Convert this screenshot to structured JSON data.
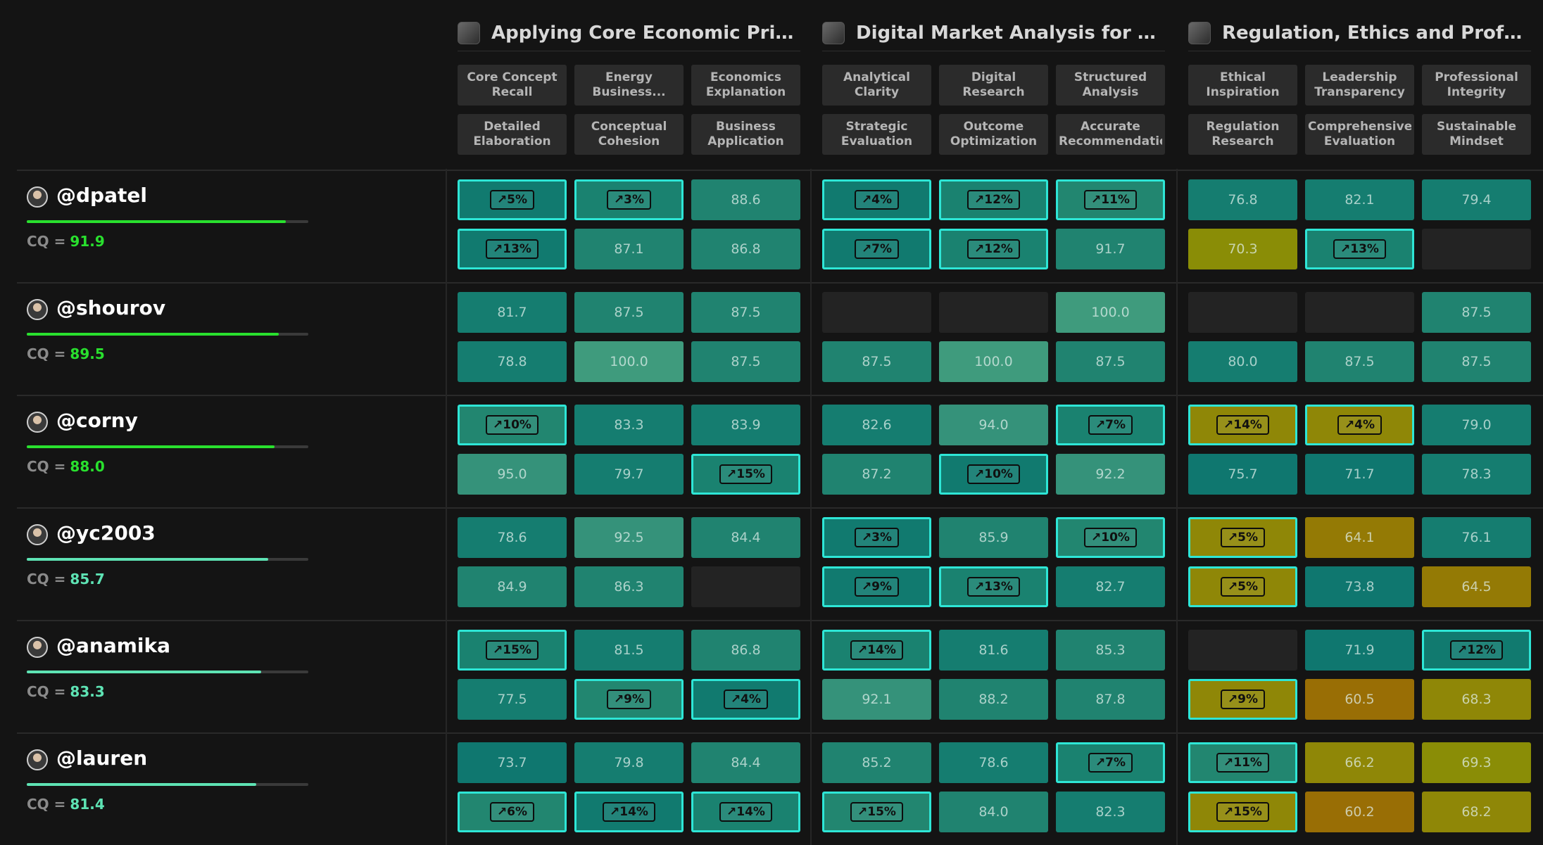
{
  "groups": [
    {
      "title": "Applying Core Economic Principle...",
      "criteria": [
        "Core Concept Recall",
        "Energy Business...",
        "Economics Explanation",
        "Detailed Elaboration",
        "Conceptual Cohesion",
        "Business Application"
      ]
    },
    {
      "title": "Digital Market Analysis for Solar...",
      "criteria": [
        "Analytical Clarity",
        "Digital Research",
        "Structured Analysis",
        "Strategic Evaluation",
        "Outcome Optimization",
        "Accurate Recommendatio"
      ]
    },
    {
      "title": "Regulation, Ethics and Profession...",
      "criteria": [
        "Ethical Inspiration",
        "Leadership Transparency",
        "Professional Integrity",
        "Regulation Research",
        "Comprehensive Evaluation",
        "Sustainable Mindset"
      ]
    }
  ],
  "cq_label": "CQ =",
  "colors": {
    "cq_high": "#29e02e",
    "cq_mid": "#5ee3b4",
    "highlight_border": "#2ee6d6",
    "background": "#141414"
  },
  "users": [
    {
      "handle": "@dpatel",
      "cq": "91.9",
      "cq_fraction": 0.919,
      "cells": [
        "↗5%",
        "↗3%",
        "88.6",
        "↗4%",
        "↗12%",
        "↗11%",
        "76.8",
        "82.1",
        "79.4",
        "↗13%",
        "87.1",
        "86.8",
        "↗7%",
        "↗12%",
        "91.7",
        "70.3",
        "↗13%",
        ""
      ]
    },
    {
      "handle": "@shourov",
      "cq": "89.5",
      "cq_fraction": 0.895,
      "cells": [
        "81.7",
        "87.5",
        "87.5",
        "",
        "",
        "100.0",
        "",
        "",
        "87.5",
        "78.8",
        "100.0",
        "87.5",
        "87.5",
        "100.0",
        "87.5",
        "80.0",
        "87.5",
        "87.5"
      ]
    },
    {
      "handle": "@corny",
      "cq": "88.0",
      "cq_fraction": 0.88,
      "cells": [
        "↗10%",
        "83.3",
        "83.9",
        "82.6",
        "94.0",
        "↗7%",
        "↗14%",
        "↗4%",
        "79.0",
        "95.0",
        "79.7",
        "↗15%",
        "87.2",
        "↗10%",
        "92.2",
        "75.7",
        "71.7",
        "78.3"
      ]
    },
    {
      "handle": "@yc2003",
      "cq": "85.7",
      "cq_fraction": 0.857,
      "cells": [
        "78.6",
        "92.5",
        "84.4",
        "↗3%",
        "85.9",
        "↗10%",
        "↗5%",
        "64.1",
        "76.1",
        "84.9",
        "86.3",
        "",
        "↗9%",
        "↗13%",
        "82.7",
        "↗5%",
        "73.8",
        "64.5"
      ]
    },
    {
      "handle": "@anamika",
      "cq": "83.3",
      "cq_fraction": 0.833,
      "cells": [
        "↗15%",
        "81.5",
        "86.8",
        "↗14%",
        "81.6",
        "85.3",
        "",
        "71.9",
        "↗12%",
        "77.5",
        "↗9%",
        "↗4%",
        "92.1",
        "88.2",
        "87.8",
        "↗9%",
        "60.5",
        "68.3"
      ]
    },
    {
      "handle": "@lauren",
      "cq": "81.4",
      "cq_fraction": 0.814,
      "cells": [
        "73.7",
        "79.8",
        "84.4",
        "85.2",
        "78.6",
        "↗7%",
        "↗11%",
        "66.2",
        "69.3",
        "↗6%",
        "↗14%",
        "↗14%",
        "↗15%",
        "84.0",
        "82.3",
        "↗15%",
        "60.2",
        "68.2"
      ]
    }
  ]
}
